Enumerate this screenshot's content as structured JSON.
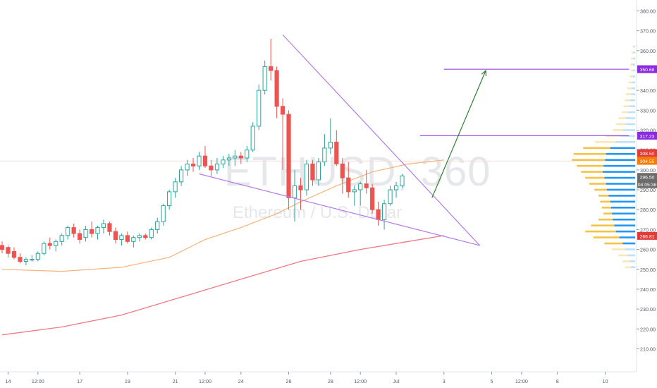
{
  "watermark": {
    "symbol": "ETHUSD, 360",
    "description": "Ethereum / U.S. Dollar"
  },
  "colors": {
    "up": "#26a69a",
    "down": "#ef5350",
    "pattern": "#b57ae8",
    "target": "#8a2be2",
    "arrow": "#2e7d32",
    "ma_fast": "#f7b27a",
    "ma_slow": "#ef7a86",
    "vp_up": "#2196f3",
    "vp_down": "#f5c242",
    "vp_up_light": "#bfe0fb",
    "vp_down_light": "#fbe6b8"
  },
  "chart_data": {
    "type": "candlestick",
    "ylim": [
      202,
      383
    ],
    "y_ticks": [
      "210.00",
      "220.00",
      "230.00",
      "240.00",
      "250.00",
      "260.00",
      "270.00",
      "280.00",
      "290.00",
      "300.00",
      "310.00",
      "320.00",
      "330.00",
      "340.00",
      "350.00",
      "360.00",
      "370.00",
      "380.00"
    ],
    "x_ticks": [
      {
        "label": "14",
        "i": 1
      },
      {
        "label": "12:00",
        "i": 6
      },
      {
        "label": "17",
        "i": 13
      },
      {
        "label": "19",
        "i": 21
      },
      {
        "label": "21",
        "i": 29
      },
      {
        "label": "12:00",
        "i": 34
      },
      {
        "label": "24",
        "i": 40
      },
      {
        "label": "26",
        "i": 48
      },
      {
        "label": "28",
        "i": 55
      },
      {
        "label": "12:00",
        "i": 60
      },
      {
        "label": "Jul",
        "i": 66
      },
      {
        "label": "3",
        "i": 74
      },
      {
        "label": "5",
        "i": 82
      },
      {
        "label": "12:00",
        "i": 87
      },
      {
        "label": "8",
        "i": 93
      },
      {
        "label": "10",
        "i": 101
      }
    ],
    "candles": [
      [
        262,
        264,
        258,
        260
      ],
      [
        261,
        262,
        256,
        258
      ],
      [
        259,
        261,
        255,
        256
      ],
      [
        256,
        258,
        253,
        254
      ],
      [
        254,
        256,
        252,
        255
      ],
      [
        255,
        257,
        254,
        255
      ],
      [
        255,
        259,
        254,
        258
      ],
      [
        258,
        264,
        257,
        263
      ],
      [
        263,
        266,
        260,
        262
      ],
      [
        262,
        265,
        259,
        264
      ],
      [
        264,
        268,
        262,
        267
      ],
      [
        267,
        272,
        265,
        271
      ],
      [
        271,
        273,
        266,
        268
      ],
      [
        268,
        270,
        263,
        265
      ],
      [
        266,
        272,
        264,
        270
      ],
      [
        270,
        274,
        266,
        268
      ],
      [
        268,
        272,
        265,
        271
      ],
      [
        271,
        275,
        268,
        273
      ],
      [
        273,
        274,
        267,
        269
      ],
      [
        269,
        271,
        263,
        265
      ],
      [
        265,
        268,
        262,
        267
      ],
      [
        267,
        269,
        263,
        264
      ],
      [
        264,
        267,
        261,
        266
      ],
      [
        266,
        268,
        264,
        267
      ],
      [
        267,
        268,
        265,
        266
      ],
      [
        266,
        271,
        265,
        270
      ],
      [
        270,
        276,
        268,
        274
      ],
      [
        274,
        283,
        272,
        282
      ],
      [
        282,
        290,
        280,
        289
      ],
      [
        289,
        296,
        286,
        294
      ],
      [
        294,
        302,
        292,
        300
      ],
      [
        300,
        305,
        297,
        303
      ],
      [
        303,
        306,
        299,
        302
      ],
      [
        302,
        309,
        300,
        307
      ],
      [
        307,
        312,
        301,
        302
      ],
      [
        302,
        305,
        297,
        300
      ],
      [
        300,
        306,
        298,
        303
      ],
      [
        303,
        307,
        301,
        305
      ],
      [
        305,
        308,
        302,
        306
      ],
      [
        306,
        310,
        302,
        307
      ],
      [
        307,
        309,
        303,
        306
      ],
      [
        306,
        312,
        304,
        310
      ],
      [
        310,
        324,
        309,
        322
      ],
      [
        322,
        343,
        320,
        340
      ],
      [
        340,
        355,
        338,
        352
      ],
      [
        352,
        366,
        345,
        350
      ],
      [
        350,
        352,
        326,
        332
      ],
      [
        332,
        336,
        300,
        328
      ],
      [
        328,
        330,
        280,
        286
      ],
      [
        286,
        300,
        274,
        292
      ],
      [
        292,
        296,
        280,
        290
      ],
      [
        290,
        305,
        287,
        303
      ],
      [
        303,
        305,
        292,
        295
      ],
      [
        295,
        306,
        292,
        304
      ],
      [
        304,
        318,
        302,
        311
      ],
      [
        311,
        326,
        308,
        314
      ],
      [
        314,
        320,
        302,
        303
      ],
      [
        303,
        306,
        288,
        296
      ],
      [
        296,
        304,
        286,
        289
      ],
      [
        289,
        292,
        282,
        290
      ],
      [
        290,
        294,
        282,
        293
      ],
      [
        293,
        300,
        288,
        291
      ],
      [
        291,
        293,
        278,
        280
      ],
      [
        280,
        284,
        272,
        275
      ],
      [
        275,
        285,
        270,
        283
      ],
      [
        283,
        292,
        282,
        290
      ],
      [
        290,
        294,
        286,
        292
      ],
      [
        292,
        298,
        291,
        297
      ]
    ],
    "ma_fast": [
      [
        0,
        250
      ],
      [
        10,
        249
      ],
      [
        20,
        251
      ],
      [
        28,
        256
      ],
      [
        34,
        265
      ],
      [
        40,
        271
      ],
      [
        46,
        278
      ],
      [
        50,
        284
      ],
      [
        56,
        292
      ],
      [
        62,
        299
      ],
      [
        68,
        303
      ],
      [
        74,
        305
      ]
    ],
    "ma_slow": [
      [
        0,
        217
      ],
      [
        10,
        221
      ],
      [
        20,
        227
      ],
      [
        30,
        236
      ],
      [
        40,
        245
      ],
      [
        50,
        254
      ],
      [
        60,
        260
      ],
      [
        68,
        264
      ],
      [
        74,
        267
      ]
    ],
    "trend_lines": [
      {
        "from": [
          47,
          368
        ],
        "to": [
          80,
          262
        ]
      },
      {
        "from": [
          33,
          298
        ],
        "to": [
          80,
          262
        ]
      }
    ],
    "target_lines": [
      {
        "from": [
          74,
          350.68
        ],
        "to": [
          105,
          350.68
        ],
        "label": "350.68"
      },
      {
        "from": [
          70,
          317.23
        ],
        "to": [
          105,
          317.23
        ],
        "label": "317.23"
      }
    ],
    "arrow": {
      "from": [
        72,
        286
      ],
      "to": [
        81,
        350
      ]
    },
    "price_labels": [
      {
        "price": 350.68,
        "text": "350.68",
        "bg": "#8a2be2"
      },
      {
        "price": 317.23,
        "text": "317.23",
        "bg": "#8a2be2"
      },
      {
        "price": 308.5,
        "text": "308.50",
        "bg": "#e53935"
      },
      {
        "price": 304.55,
        "text": "304.55",
        "bg": "#f57c00"
      },
      {
        "price": 296.5,
        "text": "296.50",
        "bg": "#6b6b6b"
      },
      {
        "price": 292.8,
        "text": "04:05:38",
        "bg": "#6b6b6b"
      },
      {
        "price": 266.81,
        "text": "266.81",
        "bg": "#e53935"
      }
    ],
    "volume_profile": [
      [
        362,
        0.3,
        0.6
      ],
      [
        359,
        0.4,
        0.9
      ],
      [
        356,
        0.5,
        1.0
      ],
      [
        353,
        0.6,
        1.2
      ],
      [
        350,
        0.5,
        1.0
      ],
      [
        347,
        0.6,
        1.3
      ],
      [
        344,
        0.8,
        1.6
      ],
      [
        341,
        0.9,
        1.9
      ],
      [
        338,
        1.0,
        2.2
      ],
      [
        335,
        1.2,
        2.5
      ],
      [
        332,
        1.4,
        2.8
      ],
      [
        329,
        1.8,
        3.2
      ],
      [
        326,
        2.2,
        4.0
      ],
      [
        323,
        2.4,
        4.6
      ],
      [
        320,
        3.0,
        5.4
      ],
      [
        317,
        3.6,
        7.0
      ],
      [
        314,
        4.8,
        9.6
      ],
      [
        311,
        6.0,
        12.5
      ],
      [
        308,
        7.0,
        14.8
      ],
      [
        305,
        7.2,
        15.2
      ],
      [
        302,
        7.6,
        14.0
      ],
      [
        299,
        7.8,
        13.0
      ],
      [
        296,
        7.4,
        12.0
      ],
      [
        293,
        7.0,
        11.0
      ],
      [
        290,
        6.8,
        9.8
      ],
      [
        287,
        6.4,
        8.8
      ],
      [
        284,
        6.0,
        8.4
      ],
      [
        281,
        5.8,
        8.0
      ],
      [
        278,
        5.6,
        7.6
      ],
      [
        275,
        5.4,
        8.8
      ],
      [
        272,
        5.0,
        10.6
      ],
      [
        269,
        4.6,
        12.0
      ],
      [
        266,
        3.8,
        10.0
      ],
      [
        263,
        3.0,
        7.4
      ],
      [
        260,
        2.4,
        5.6
      ],
      [
        257,
        1.8,
        4.0
      ],
      [
        254,
        1.3,
        3.0
      ],
      [
        251,
        1.0,
        2.4
      ]
    ]
  }
}
